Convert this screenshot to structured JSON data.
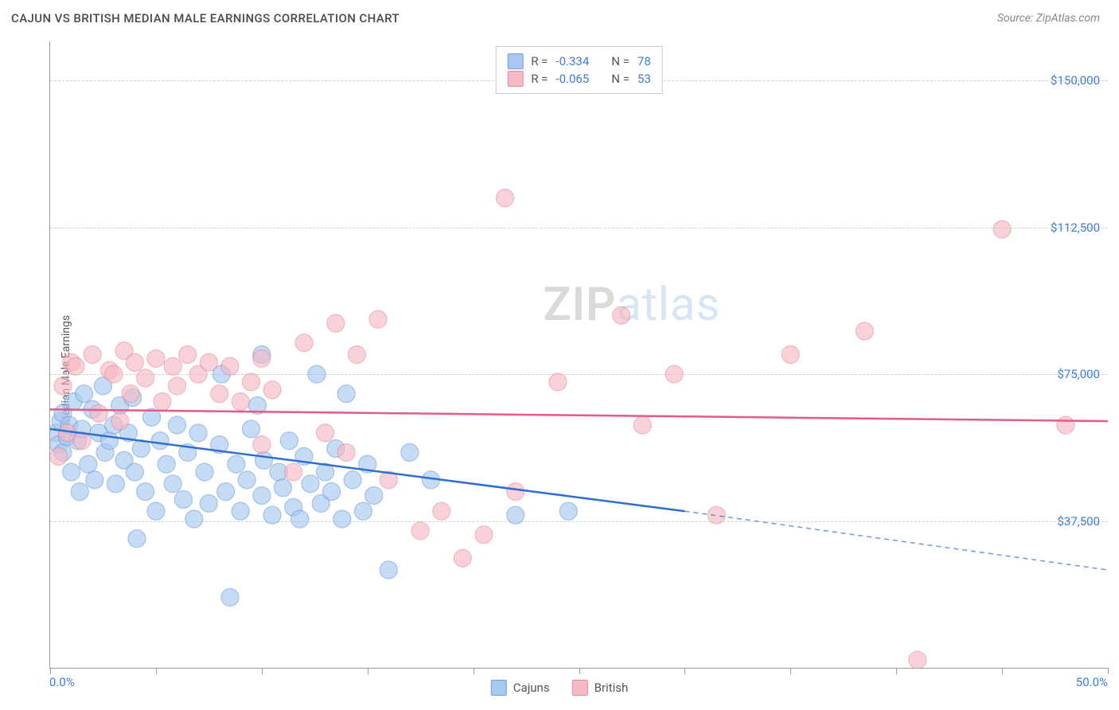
{
  "title": "CAJUN VS BRITISH MEDIAN MALE EARNINGS CORRELATION CHART",
  "source": "Source: ZipAtlas.com",
  "y_axis_label": "Median Male Earnings",
  "watermark_zip": "ZIP",
  "watermark_atlas": "atlas",
  "chart": {
    "type": "scatter",
    "xlim": [
      0,
      50
    ],
    "ylim": [
      0,
      160000
    ],
    "y_ticks": [
      37500,
      75000,
      112500,
      150000
    ],
    "y_tick_labels": [
      "$37,500",
      "$75,000",
      "$112,500",
      "$150,000"
    ],
    "x_tick_positions": [
      0,
      5,
      10,
      15,
      20,
      25,
      30,
      35,
      40,
      45,
      50
    ],
    "x_end_labels": [
      "0.0%",
      "50.0%"
    ],
    "grid_color": "#d0d0d0",
    "axis_color": "#999999",
    "label_color": "#3b7dd8",
    "background_color": "#ffffff",
    "series": [
      {
        "name": "Cajuns",
        "marker_fill": "#a8c8ef",
        "marker_stroke": "#6ea0de",
        "marker_opacity": 0.65,
        "marker_radius": 11,
        "line_color": "#2e6fd0",
        "line_width": 2.5,
        "R": "-0.334",
        "N": "78",
        "trend": {
          "x1": 0,
          "y1": 61000,
          "x2_solid": 30,
          "y2_solid": 40000,
          "x2": 50,
          "y2": 25000
        },
        "points": [
          [
            0.3,
            60000
          ],
          [
            0.4,
            57000
          ],
          [
            0.5,
            63000
          ],
          [
            0.6,
            55000
          ],
          [
            0.6,
            65000
          ],
          [
            0.8,
            59000
          ],
          [
            0.9,
            62000
          ],
          [
            1.0,
            50000
          ],
          [
            1.1,
            68000
          ],
          [
            1.3,
            58000
          ],
          [
            1.4,
            45000
          ],
          [
            1.5,
            61000
          ],
          [
            1.6,
            70000
          ],
          [
            1.8,
            52000
          ],
          [
            2.0,
            66000
          ],
          [
            2.1,
            48000
          ],
          [
            2.3,
            60000
          ],
          [
            2.5,
            72000
          ],
          [
            2.6,
            55000
          ],
          [
            2.8,
            58000
          ],
          [
            3.0,
            62000
          ],
          [
            3.1,
            47000
          ],
          [
            3.3,
            67000
          ],
          [
            3.5,
            53000
          ],
          [
            3.7,
            60000
          ],
          [
            3.9,
            69000
          ],
          [
            4.0,
            50000
          ],
          [
            4.1,
            33000
          ],
          [
            4.3,
            56000
          ],
          [
            4.5,
            45000
          ],
          [
            4.8,
            64000
          ],
          [
            5.0,
            40000
          ],
          [
            5.2,
            58000
          ],
          [
            5.5,
            52000
          ],
          [
            5.8,
            47000
          ],
          [
            6.0,
            62000
          ],
          [
            6.3,
            43000
          ],
          [
            6.5,
            55000
          ],
          [
            6.8,
            38000
          ],
          [
            7.0,
            60000
          ],
          [
            7.3,
            50000
          ],
          [
            7.5,
            42000
          ],
          [
            8.0,
            57000
          ],
          [
            8.1,
            75000
          ],
          [
            8.3,
            45000
          ],
          [
            8.5,
            18000
          ],
          [
            8.8,
            52000
          ],
          [
            9.0,
            40000
          ],
          [
            9.3,
            48000
          ],
          [
            9.5,
            61000
          ],
          [
            9.8,
            67000
          ],
          [
            10.0,
            44000
          ],
          [
            10.0,
            80000
          ],
          [
            10.1,
            53000
          ],
          [
            10.5,
            39000
          ],
          [
            10.8,
            50000
          ],
          [
            11.0,
            46000
          ],
          [
            11.3,
            58000
          ],
          [
            11.5,
            41000
          ],
          [
            11.8,
            38000
          ],
          [
            12.0,
            54000
          ],
          [
            12.3,
            47000
          ],
          [
            12.6,
            75000
          ],
          [
            12.8,
            42000
          ],
          [
            13.0,
            50000
          ],
          [
            13.3,
            45000
          ],
          [
            13.5,
            56000
          ],
          [
            13.8,
            38000
          ],
          [
            14.0,
            70000
          ],
          [
            14.3,
            48000
          ],
          [
            14.8,
            40000
          ],
          [
            15.0,
            52000
          ],
          [
            15.3,
            44000
          ],
          [
            16.0,
            25000
          ],
          [
            17.0,
            55000
          ],
          [
            18.0,
            48000
          ],
          [
            22.0,
            39000
          ],
          [
            24.5,
            40000
          ]
        ]
      },
      {
        "name": "British",
        "marker_fill": "#f6b8c3",
        "marker_stroke": "#e88a9d",
        "marker_opacity": 0.62,
        "marker_radius": 11,
        "line_color": "#e65a88",
        "line_width": 2.5,
        "R": "-0.065",
        "N": "53",
        "trend": {
          "x1": 0,
          "y1": 66000,
          "x2_solid": 50,
          "y2_solid": 63000,
          "x2": 50,
          "y2": 63000
        },
        "points": [
          [
            0.4,
            54000
          ],
          [
            0.6,
            72000
          ],
          [
            0.8,
            60000
          ],
          [
            1.0,
            78000
          ],
          [
            1.2,
            77000
          ],
          [
            1.5,
            58000
          ],
          [
            2.0,
            80000
          ],
          [
            2.3,
            65000
          ],
          [
            2.8,
            76000
          ],
          [
            3.0,
            75000
          ],
          [
            3.3,
            63000
          ],
          [
            3.5,
            81000
          ],
          [
            3.8,
            70000
          ],
          [
            4.0,
            78000
          ],
          [
            4.5,
            74000
          ],
          [
            5.0,
            79000
          ],
          [
            5.3,
            68000
          ],
          [
            5.8,
            77000
          ],
          [
            6.0,
            72000
          ],
          [
            6.5,
            80000
          ],
          [
            7.0,
            75000
          ],
          [
            7.5,
            78000
          ],
          [
            8.0,
            70000
          ],
          [
            8.5,
            77000
          ],
          [
            9.0,
            68000
          ],
          [
            9.5,
            73000
          ],
          [
            10.0,
            79000
          ],
          [
            10.5,
            71000
          ],
          [
            10.0,
            57000
          ],
          [
            11.5,
            50000
          ],
          [
            12.0,
            83000
          ],
          [
            13.0,
            60000
          ],
          [
            13.5,
            88000
          ],
          [
            14.0,
            55000
          ],
          [
            14.5,
            80000
          ],
          [
            15.5,
            89000
          ],
          [
            16.0,
            48000
          ],
          [
            17.5,
            35000
          ],
          [
            18.5,
            40000
          ],
          [
            19.5,
            28000
          ],
          [
            20.5,
            34000
          ],
          [
            21.5,
            120000
          ],
          [
            22.0,
            45000
          ],
          [
            24.0,
            73000
          ],
          [
            27.0,
            90000
          ],
          [
            28.0,
            62000
          ],
          [
            29.5,
            75000
          ],
          [
            31.5,
            39000
          ],
          [
            35.0,
            80000
          ],
          [
            38.5,
            86000
          ],
          [
            41.0,
            2000
          ],
          [
            45.0,
            112000
          ],
          [
            48.0,
            62000
          ]
        ]
      }
    ]
  },
  "legend_top": {
    "R_label": "R =",
    "N_label": "N ="
  },
  "legend_bottom_labels": [
    "Cajuns",
    "British"
  ]
}
